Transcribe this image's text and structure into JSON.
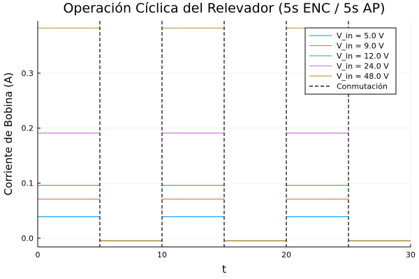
{
  "chart_data": {
    "type": "line",
    "title": "Operación Cíclica del Relevador (5s ENC / 5s AP)",
    "xlabel": "t",
    "ylabel": "Corriente de Bobina (A)",
    "xlim": [
      0,
      30
    ],
    "ylim": [
      -0.016,
      0.395
    ],
    "xticks": [
      0,
      10,
      20,
      30
    ],
    "xtick_labels": [
      "0",
      "10",
      "20",
      "30"
    ],
    "yticks": [
      0.0,
      0.1,
      0.2,
      0.3
    ],
    "ytick_labels": [
      "0.0",
      "0.1",
      "0.2",
      "0.3"
    ],
    "grid": true,
    "legend_position": "top-right",
    "off_value": -0.005,
    "series": [
      {
        "name": "V_in = 5.0 V",
        "color": "#009AFA",
        "on_value": 0.039
      },
      {
        "name": "V_in = 9.0 V",
        "color": "#E36F47",
        "on_value": 0.071
      },
      {
        "name": "V_in = 12.0 V",
        "color": "#3EA44E",
        "on_value": 0.096
      },
      {
        "name": "V_in = 24.0 V",
        "color": "#C371D2",
        "on_value": 0.191
      },
      {
        "name": "V_in = 48.0 V",
        "color": "#AC8D18",
        "on_value": 0.382
      }
    ],
    "on_intervals": [
      [
        0,
        5
      ],
      [
        10,
        15
      ],
      [
        20,
        25
      ]
    ],
    "off_intervals": [
      [
        5,
        10
      ],
      [
        15,
        20
      ],
      [
        25,
        30
      ]
    ],
    "switch_series": {
      "name": "Conmutación",
      "color": "#000000",
      "style": "dashed",
      "x": [
        5,
        10,
        15,
        20,
        25
      ]
    }
  }
}
